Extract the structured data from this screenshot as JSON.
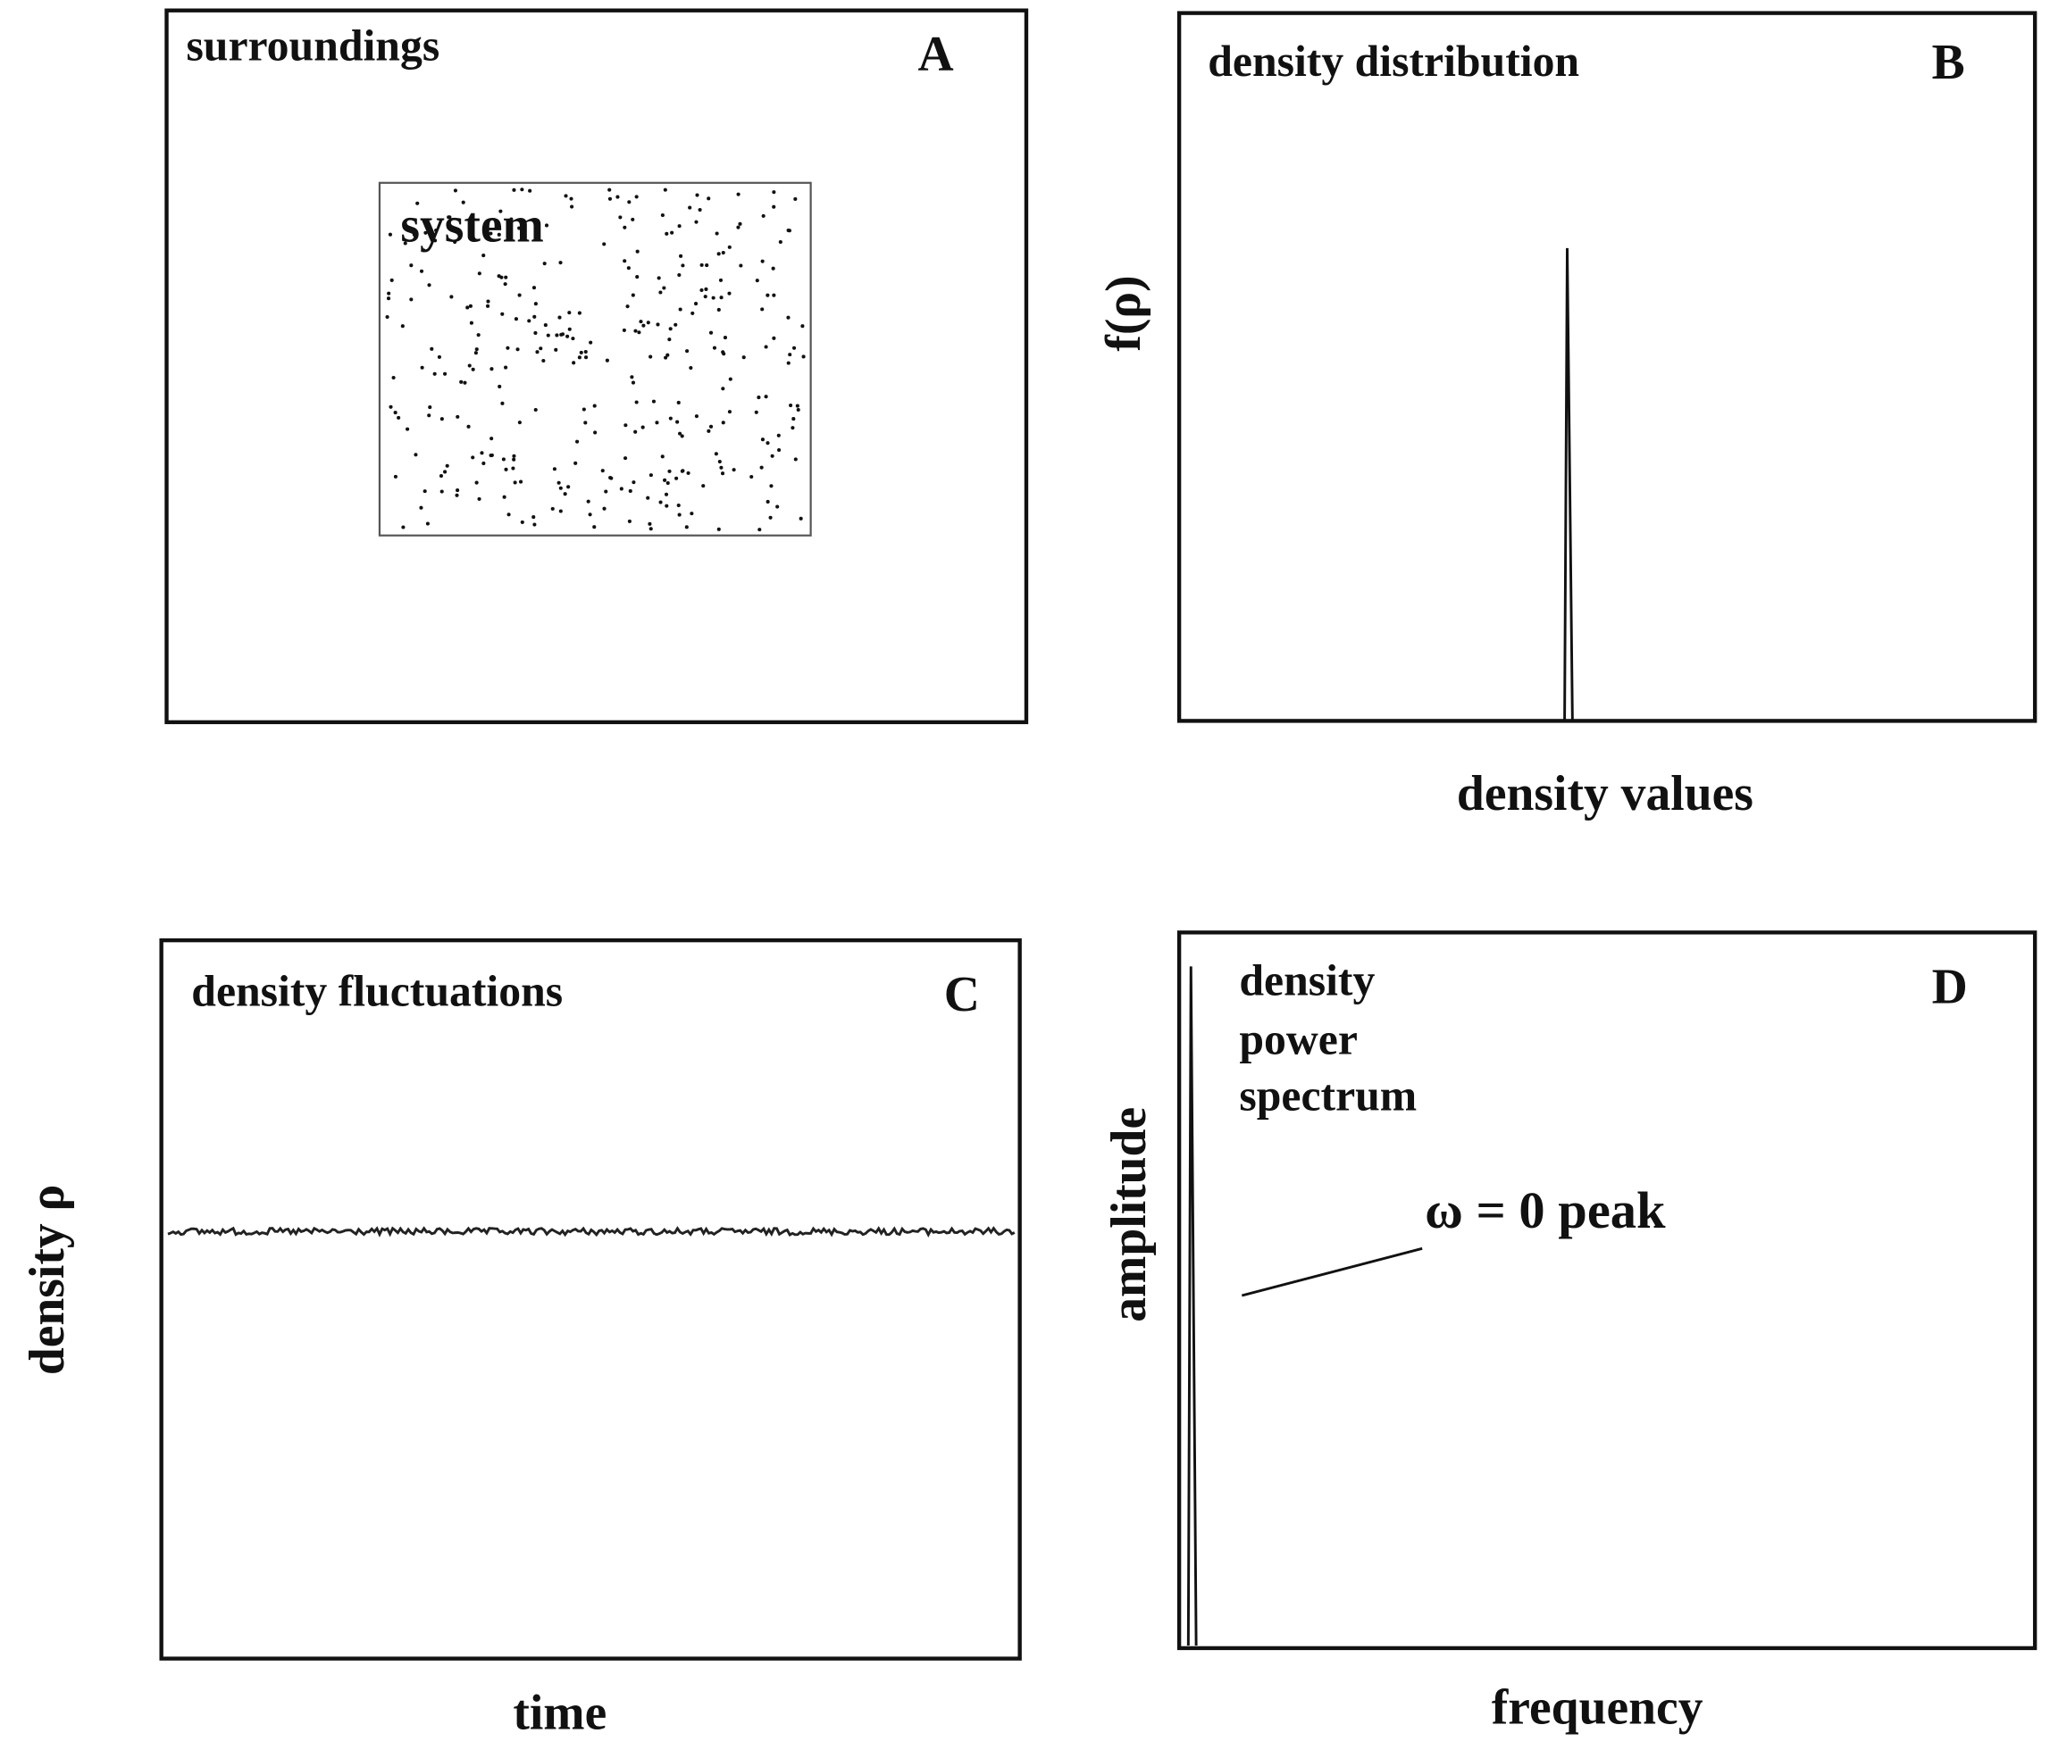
{
  "panels": [
    {
      "letter": "A",
      "title": "surroundings",
      "inner_label": "system"
    },
    {
      "letter": "B",
      "title": "density distribution",
      "x_label": "density values",
      "y_label": "f(ρ)"
    },
    {
      "letter": "C",
      "title": "density fluctuations",
      "x_label": "time",
      "y_label": "density ρ"
    },
    {
      "letter": "D",
      "title_lines": [
        "density",
        "power",
        "spectrum"
      ],
      "x_label": "frequency",
      "y_label": "amplitude",
      "annotation": "ω = 0 peak"
    }
  ]
}
